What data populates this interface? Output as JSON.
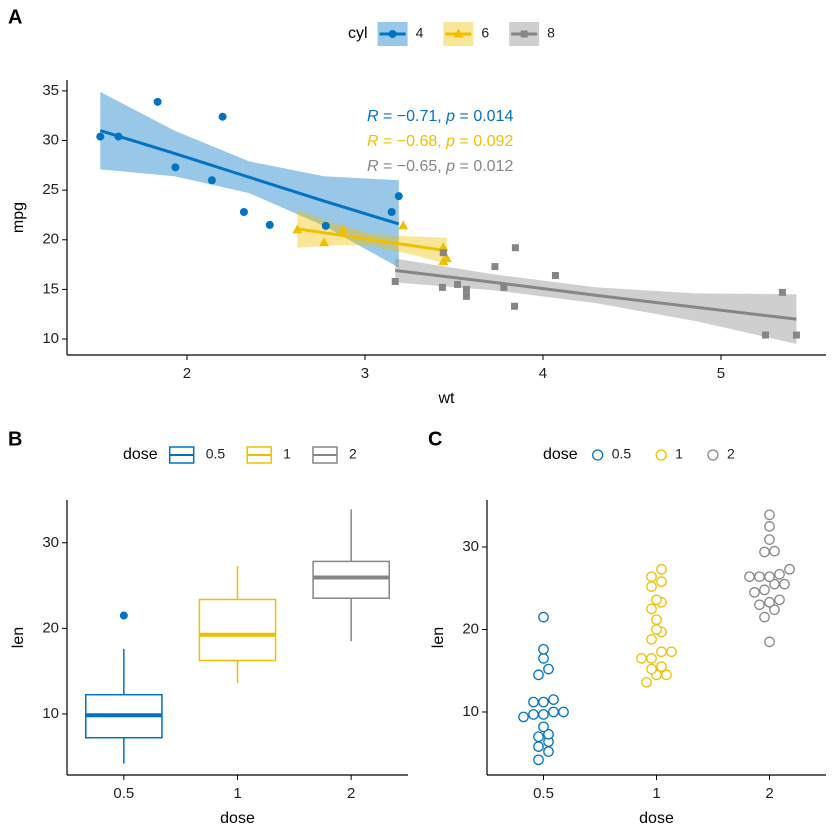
{
  "chart_data": [
    {
      "type": "scatter",
      "panel_label": "A",
      "xlabel": "wt",
      "ylabel": "mpg",
      "xlim": [
        1.326,
        5.59
      ],
      "ylim": [
        8.39,
        36.1
      ],
      "xticks": [
        2,
        3,
        4,
        5
      ],
      "yticks": [
        10,
        15,
        20,
        25,
        30,
        35
      ],
      "legend": "top",
      "legend_title": "cyl",
      "grid": false,
      "series": [
        {
          "name": "4",
          "color": "#0073C2",
          "shape": "circle",
          "x": [
            2.32,
            3.19,
            3.15,
            2.2,
            1.615,
            1.835,
            2.465,
            1.935,
            2.14,
            1.513,
            2.78
          ],
          "values": [
            22.8,
            24.4,
            22.8,
            32.4,
            30.4,
            33.9,
            21.5,
            27.3,
            26.0,
            30.4,
            21.4
          ],
          "fit": {
            "x": [
              1.513,
              1.93,
              2.35,
              2.77,
              3.19
            ],
            "values": [
              31.0,
              28.7,
              26.3,
              23.9,
              21.6
            ],
            "lower": [
              27.1,
              26.4,
              24.7,
              21.4,
              17.2
            ],
            "upper": [
              34.9,
              31.0,
              27.9,
              26.4,
              26.0
            ]
          }
        },
        {
          "name": "6",
          "color": "#EFC000",
          "shape": "triangle",
          "x": [
            2.62,
            2.875,
            3.215,
            3.46,
            3.44,
            3.44,
            2.77
          ],
          "values": [
            21.0,
            21.0,
            21.4,
            18.1,
            19.2,
            17.8,
            19.7
          ],
          "fit": {
            "x": [
              2.62,
              2.83,
              3.04,
              3.25,
              3.46
            ],
            "values": [
              21.1,
              20.55,
              20.0,
              19.45,
              18.9
            ],
            "lower": [
              19.2,
              19.45,
              19.4,
              18.55,
              17.6
            ],
            "upper": [
              23.0,
              21.65,
              20.6,
              20.35,
              20.2
            ]
          }
        },
        {
          "name": "8",
          "color": "#868686",
          "shape": "square",
          "x": [
            3.44,
            3.57,
            4.07,
            3.73,
            3.78,
            5.25,
            5.424,
            5.345,
            3.52,
            3.435,
            3.84,
            3.845,
            3.17,
            3.57
          ],
          "values": [
            18.7,
            14.3,
            16.4,
            17.3,
            15.2,
            10.4,
            10.4,
            14.7,
            15.5,
            15.2,
            13.3,
            19.2,
            15.8,
            15.0
          ],
          "fit": {
            "x": [
              3.17,
              3.73,
              4.3,
              4.86,
              5.424
            ],
            "values": [
              16.9,
              15.7,
              14.4,
              13.2,
              12.0
            ],
            "lower": [
              15.7,
              14.9,
              13.6,
              11.8,
              9.5
            ],
            "upper": [
              18.1,
              16.5,
              15.2,
              14.6,
              14.5
            ]
          }
        }
      ],
      "annotations": [
        {
          "color": "#0073C2",
          "parts": [
            "R",
            " = −0.71, ",
            "p",
            " = 0.014"
          ]
        },
        {
          "color": "#EFC000",
          "parts": [
            "R",
            " = −0.68, ",
            "p",
            " = 0.092"
          ]
        },
        {
          "color": "#868686",
          "parts": [
            "R",
            " = −0.65, ",
            "p",
            " = 0.012"
          ]
        }
      ]
    },
    {
      "type": "box",
      "panel_label": "B",
      "xlabel": "dose",
      "ylabel": "len",
      "ylim": [
        2.87,
        35.0
      ],
      "yticks": [
        10,
        20,
        30
      ],
      "legend": "top",
      "legend_title": "dose",
      "categories": [
        "0.5",
        "1",
        "2"
      ],
      "colors": [
        "#0073C2",
        "#EFC000",
        "#868686"
      ],
      "min": [
        4.2,
        13.6,
        18.5
      ],
      "q1": [
        7.225,
        16.25,
        23.525
      ],
      "median": [
        9.85,
        19.25,
        25.95
      ],
      "q3": [
        12.25,
        23.375,
        27.825
      ],
      "max": [
        17.6,
        27.3,
        33.9
      ],
      "outliers": [
        {
          "category": 0,
          "value": 21.5
        }
      ]
    },
    {
      "type": "dotplot",
      "panel_label": "C",
      "xlabel": "dose",
      "ylabel": "len",
      "ylim": [
        2.36,
        35.7
      ],
      "yticks": [
        10,
        20,
        30
      ],
      "legend": "top",
      "legend_title": "dose",
      "categories": [
        "0.5",
        "1",
        "2"
      ],
      "colors": [
        "#0073C2",
        "#EFC000",
        "#868686"
      ],
      "values": [
        [
          4.2,
          11.5,
          7.3,
          5.8,
          6.4,
          10,
          11.2,
          11.2,
          5.2,
          7,
          15.2,
          21.5,
          17.6,
          9.7,
          14.5,
          10,
          8.2,
          9.4,
          16.5,
          9.7
        ],
        [
          16.5,
          16.5,
          15.2,
          17.3,
          22.5,
          17.3,
          13.6,
          14.5,
          18.8,
          15.5,
          19.7,
          23.3,
          23.6,
          26.4,
          20,
          25.2,
          25.8,
          21.2,
          14.5,
          27.3
        ],
        [
          23.6,
          18.5,
          33.9,
          25.5,
          26.4,
          32.5,
          26.7,
          21.5,
          23.3,
          29.5,
          25.5,
          26.4,
          22.4,
          24.5,
          24.8,
          30.9,
          26.4,
          27.3,
          29.4,
          23
        ]
      ]
    }
  ]
}
